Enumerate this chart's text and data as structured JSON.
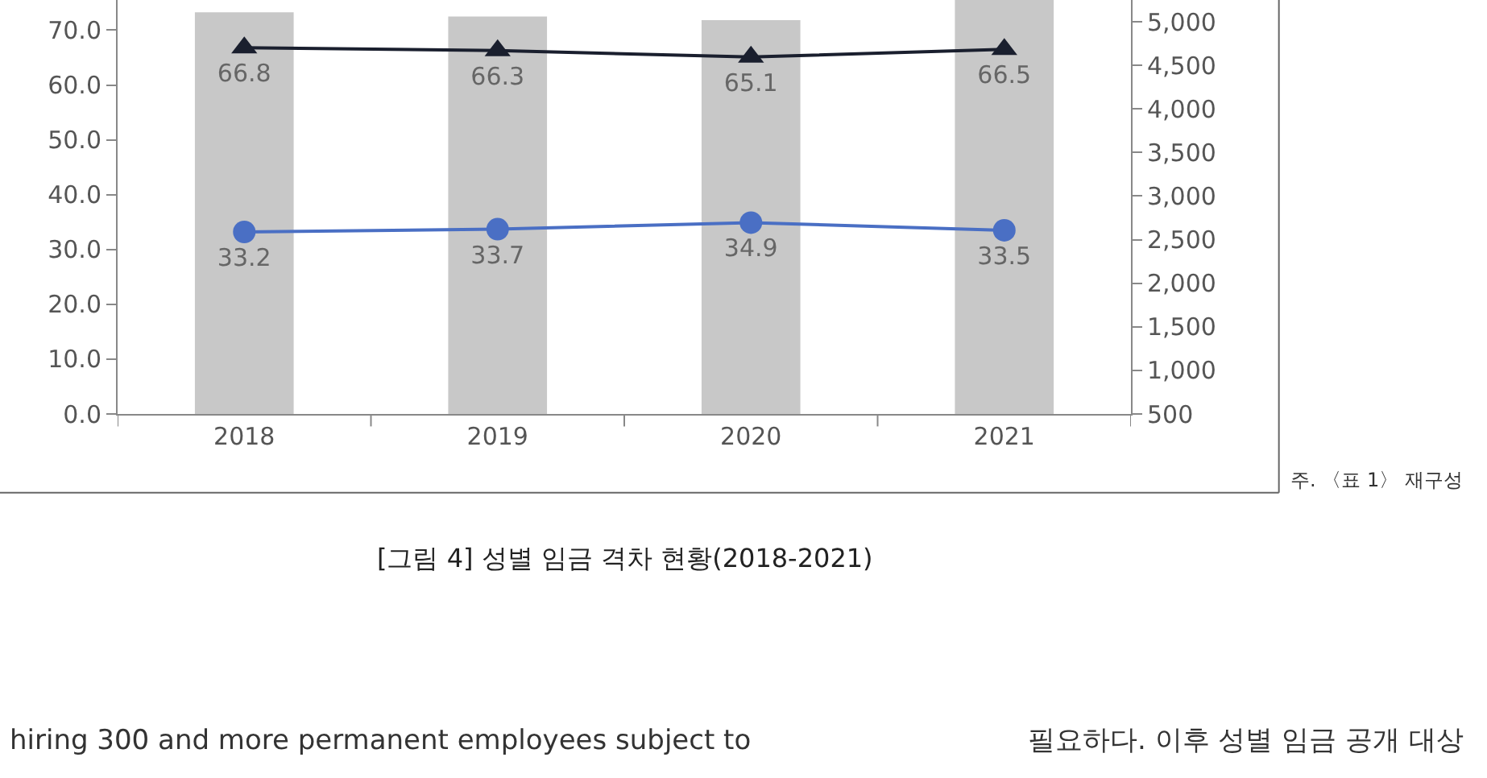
{
  "chart_data": {
    "type": "bar",
    "categories": [
      "2018",
      "2019",
      "2020",
      "2021"
    ],
    "series": [
      {
        "axis": "y2",
        "color": "#c8c8c8",
        "values": [
          5110,
          5060,
          5020,
          5250
        ]
      },
      {
        "type": "line",
        "color": "#1a1f2e",
        "marker": "triangle",
        "values": [
          66.8,
          66.3,
          65.1,
          66.5
        ],
        "value_labels": [
          "66.8",
          "66.3",
          "65.1",
          "66.5"
        ]
      },
      {
        "type": "line",
        "color": "#4a6fc4",
        "marker": "circle",
        "values": [
          33.2,
          33.7,
          34.9,
          33.5
        ],
        "value_labels": [
          "33.2",
          "33.7",
          "34.9",
          "33.5"
        ]
      }
    ],
    "ylim": [
      0,
      75.5
    ],
    "yticks": [
      {
        "value": 0,
        "label": "0.0"
      },
      {
        "value": 10,
        "label": "10.0"
      },
      {
        "value": 20,
        "label": "20.0"
      },
      {
        "value": 30,
        "label": "30.0"
      },
      {
        "value": 40,
        "label": "40.0"
      },
      {
        "value": 50,
        "label": "50.0"
      },
      {
        "value": 60,
        "label": "60.0"
      },
      {
        "value": 70,
        "label": "70.0"
      }
    ],
    "y2lim": [
      500,
      5250
    ],
    "y2ticks": [
      500,
      {
        "value": 1000,
        "label": "1,000"
      },
      {
        "value": 1500,
        "label": "1,500"
      },
      {
        "value": 2000,
        "label": "2,000"
      },
      {
        "value": 2500,
        "label": "2,500"
      },
      {
        "value": 3000,
        "label": "3,000"
      },
      {
        "value": 3500,
        "label": "3,500"
      },
      {
        "value": 4000,
        "label": "4,000"
      },
      {
        "value": 4500,
        "label": "4,500"
      },
      {
        "value": 5000,
        "label": "5,000"
      }
    ],
    "annotations": [
      "주. 〈표 1〉 재구성",
      "[그림 4] 성별 임금 격차 현황(2018-2021)",
      "hiring 300 and more permanent employees subject to",
      "필요하다. 이후 성별 임금 공개 대상"
    ]
  }
}
